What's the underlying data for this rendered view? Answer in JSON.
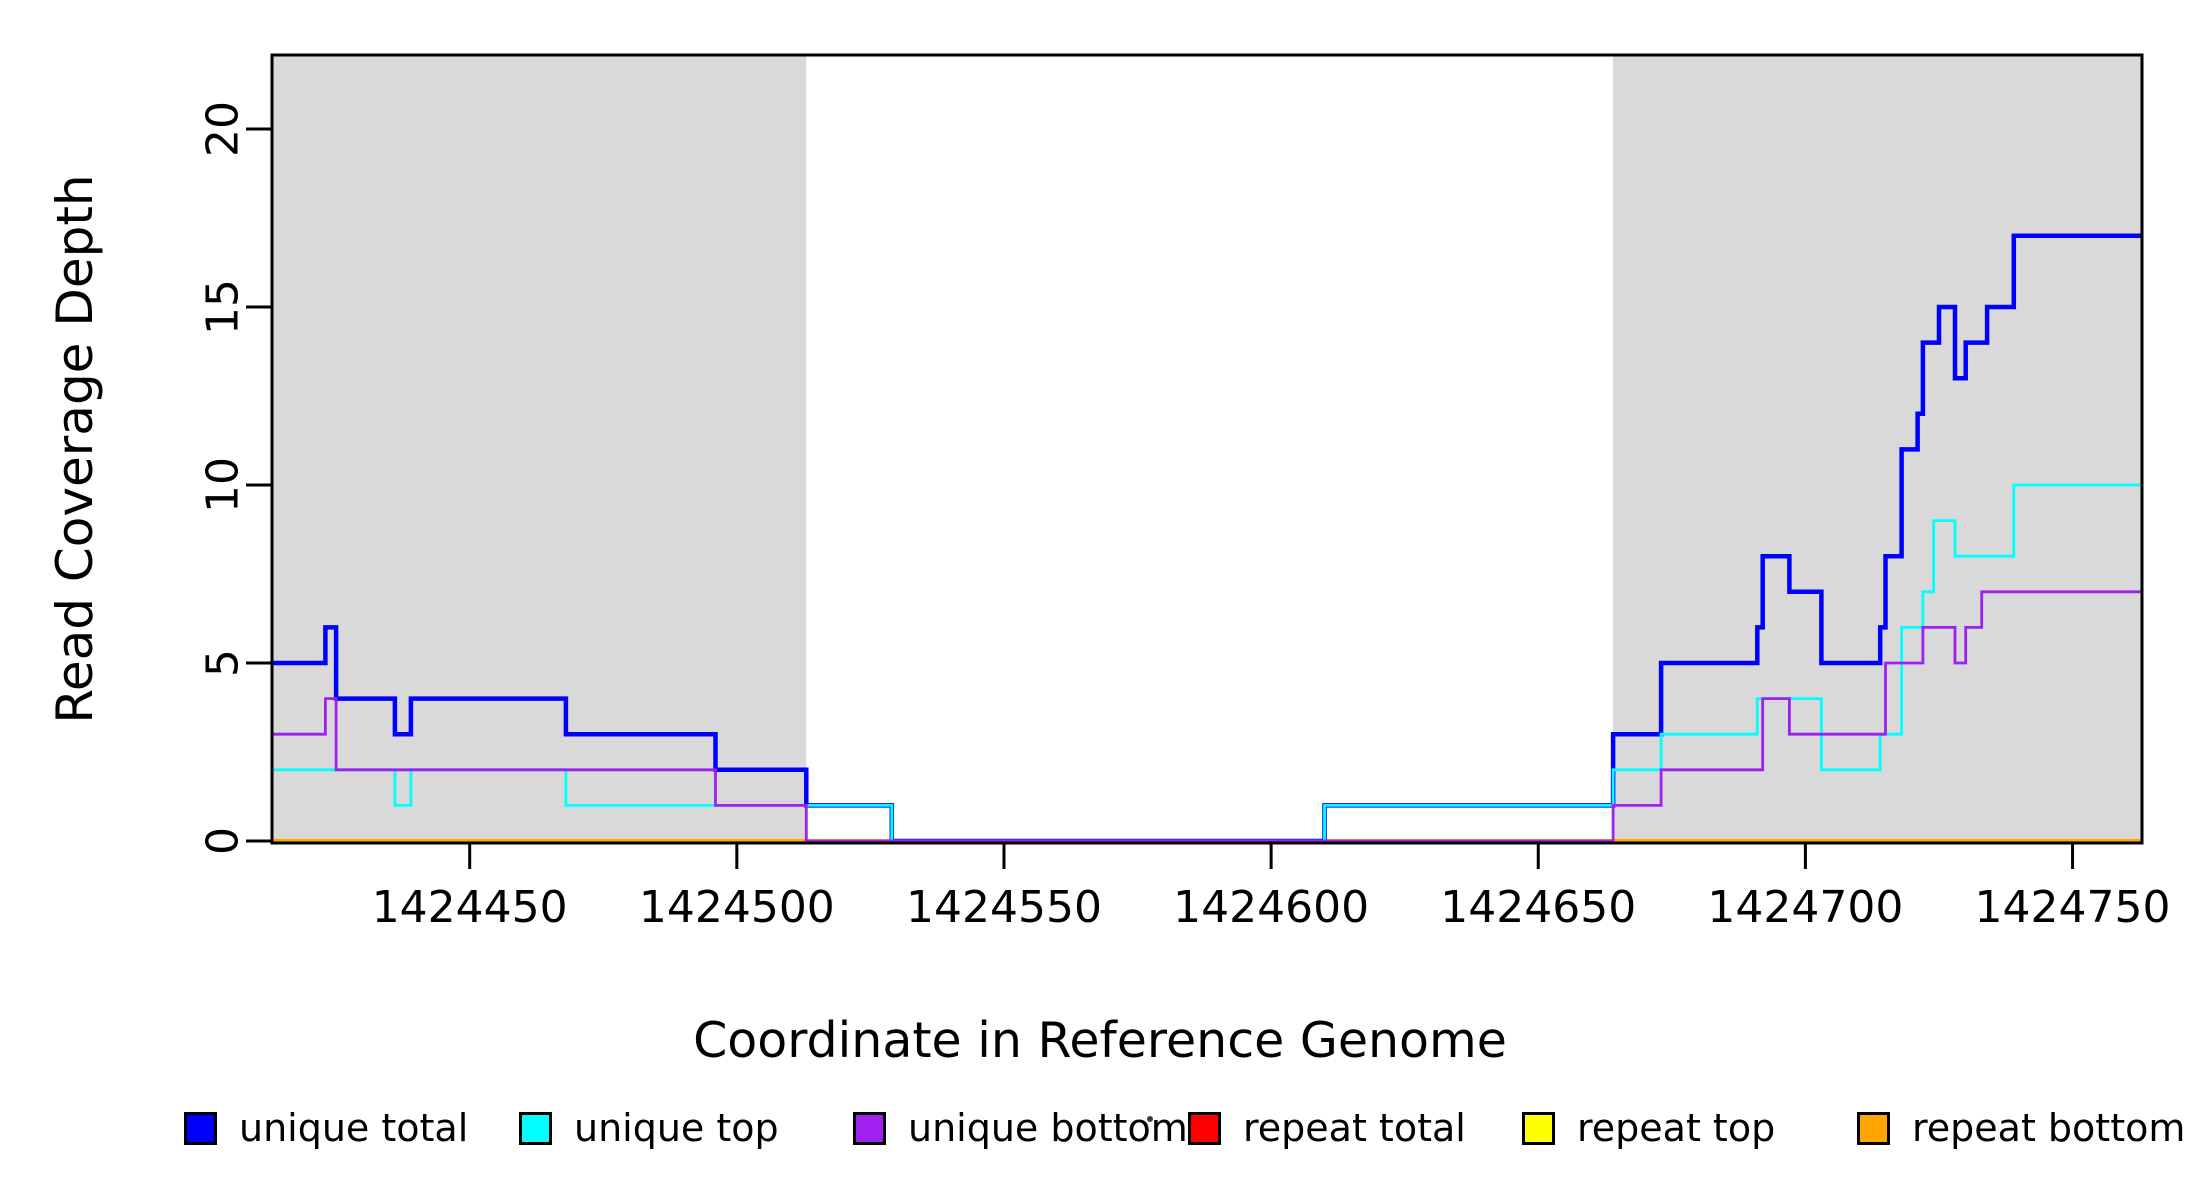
{
  "figure": {
    "xlabel": "Coordinate in Reference Genome",
    "ylabel": "Read Coverage Depth",
    "background": "#FFFFFF"
  },
  "chart_data": {
    "type": "line",
    "subtype": "step-after",
    "title": "",
    "xlabel": "Coordinate in Reference Genome",
    "ylabel": "Read Coverage Depth",
    "xlim": [
      1424413,
      1424763
    ],
    "ylim": [
      0,
      22.1
    ],
    "grid": false,
    "x_ticks": [
      1424450,
      1424500,
      1424550,
      1424600,
      1424650,
      1424700,
      1424750
    ],
    "y_ticks": [
      0,
      5,
      10,
      15,
      20
    ],
    "axis_color": "#000000",
    "shaded_regions": [
      {
        "name": "left-homology-block",
        "x0": 1424413,
        "x1": 1424513,
        "color": "#D9D9D9"
      },
      {
        "name": "right-homology-block",
        "x0": 1424664,
        "x1": 1424763,
        "color": "#D9D9D9"
      }
    ],
    "series": [
      {
        "name": "repeat total",
        "color": "#FF0000",
        "line_width": 3.5,
        "steps": [
          [
            1424413,
            0
          ],
          [
            1424763,
            0
          ]
        ]
      },
      {
        "name": "repeat top",
        "color": "#FFFF00",
        "line_width": 3.5,
        "steps": [
          [
            1424413,
            0
          ],
          [
            1424763,
            0
          ]
        ]
      },
      {
        "name": "repeat bottom",
        "color": "#FFA500",
        "line_width": 4,
        "steps": [
          [
            1424413,
            0
          ],
          [
            1424763,
            0
          ]
        ]
      },
      {
        "name": "unique total",
        "color": "#0000FF",
        "line_width": 4.5,
        "steps": [
          [
            1424413,
            5
          ],
          [
            1424423,
            6
          ],
          [
            1424425,
            4
          ],
          [
            1424436,
            3
          ],
          [
            1424439,
            4
          ],
          [
            1424468,
            3
          ],
          [
            1424496,
            2
          ],
          [
            1424513,
            1
          ],
          [
            1424529,
            0
          ],
          [
            1424610,
            1
          ],
          [
            1424664,
            3
          ],
          [
            1424673,
            5
          ],
          [
            1424691,
            6
          ],
          [
            1424692,
            8
          ],
          [
            1424697,
            7
          ],
          [
            1424703,
            5
          ],
          [
            1424714,
            6
          ],
          [
            1424715,
            8
          ],
          [
            1424718,
            11
          ],
          [
            1424721,
            12
          ],
          [
            1424722,
            14
          ],
          [
            1424725,
            15
          ],
          [
            1424728,
            13
          ],
          [
            1424730,
            14
          ],
          [
            1424734,
            15
          ],
          [
            1424739,
            17
          ],
          [
            1424763,
            17
          ]
        ]
      },
      {
        "name": "unique top",
        "color": "#00FFFF",
        "line_width": 2.8,
        "steps": [
          [
            1424413,
            2
          ],
          [
            1424436,
            1
          ],
          [
            1424439,
            2
          ],
          [
            1424468,
            1
          ],
          [
            1424529,
            0
          ],
          [
            1424610,
            1
          ],
          [
            1424664,
            2
          ],
          [
            1424673,
            3
          ],
          [
            1424691,
            4
          ],
          [
            1424703,
            2
          ],
          [
            1424714,
            3
          ],
          [
            1424718,
            6
          ],
          [
            1424722,
            7
          ],
          [
            1424724,
            9
          ],
          [
            1424728,
            8
          ],
          [
            1424739,
            10
          ],
          [
            1424763,
            10
          ]
        ]
      },
      {
        "name": "unique bottom",
        "color": "#A020F0",
        "line_width": 2.8,
        "steps": [
          [
            1424413,
            3
          ],
          [
            1424423,
            4
          ],
          [
            1424425,
            2
          ],
          [
            1424496,
            1
          ],
          [
            1424513,
            0
          ],
          [
            1424664,
            1
          ],
          [
            1424673,
            2
          ],
          [
            1424692,
            4
          ],
          [
            1424697,
            3
          ],
          [
            1424715,
            5
          ],
          [
            1424722,
            6
          ],
          [
            1424728,
            5
          ],
          [
            1424730,
            6
          ],
          [
            1424733,
            7
          ],
          [
            1424763,
            7
          ]
        ]
      }
    ],
    "legend_position": "bottom"
  },
  "legend": {
    "items": [
      {
        "label": "unique total",
        "color": "#0000FF"
      },
      {
        "label": "unique top",
        "color": "#00FFFF"
      },
      {
        "label": "unique bottom",
        "color": "#A020F0"
      },
      {
        "label": "repeat total",
        "color": "#FF0000"
      },
      {
        "label": "repeat top",
        "color": "#FFFF00"
      },
      {
        "label": "repeat bottom",
        "color": "#FFA500"
      }
    ]
  }
}
